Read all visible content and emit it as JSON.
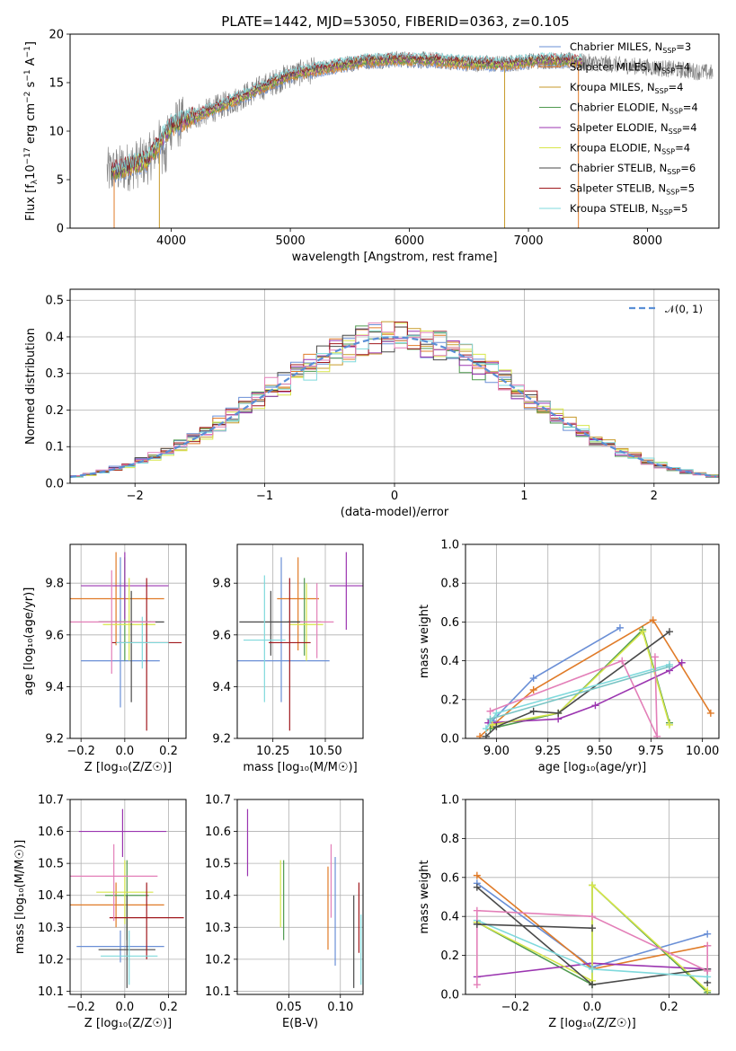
{
  "figure": {
    "title": "PLATE=1442, MJD=53050, FIBERID=0363, z=0.105"
  },
  "colors": {
    "Chabrier MILES": "#6a8fd6",
    "Salpeter MILES": "#e07b28",
    "Kroupa MILES": "#c79a2a",
    "Chabrier ELODIE": "#4f9a4f",
    "Salpeter ELODIE": "#9b35b0",
    "Kroupa ELODIE": "#d7e64a",
    "Chabrier STELIB": "#4a4a4a",
    "Salpeter STELIB": "#a0181d",
    "Kroupa STELIB": "#7fd9dc",
    "Pink": "#e37fb8",
    "Green": "#b8e05a",
    "Data": "#7f7f7f"
  },
  "chart_data": [
    {
      "id": "spectrum",
      "type": "line",
      "title": "PLATE=1442, MJD=53050, FIBERID=0363, z=0.105",
      "xlabel": "wavelength [Angstrom, rest frame]",
      "ylabel": "Flux [f",
      "ylabel_sub": "λ",
      "ylabel_mid": "10",
      "ylabel_sup": "−17",
      "ylabel_tail": " erg cm",
      "ylabel_sup2": "−2",
      "ylabel_tail2": " s",
      "ylabel_sup3": "−1",
      "ylabel_tail3": " A",
      "ylabel_sup4": "−1",
      "ylabel_end": "]",
      "xlim": [
        3150,
        8600
      ],
      "ylim": [
        0,
        20
      ],
      "xticks": [
        "4000",
        "5000",
        "6000",
        "7000",
        "8000"
      ],
      "yticks": [
        "0",
        "5",
        "10",
        "15",
        "20"
      ],
      "grid": false,
      "legend_position": "top-right",
      "legend": [
        {
          "label": "Chabrier MILES, N",
          "sub": "SSP",
          "tail": "=3",
          "color": "#6a8fd6"
        },
        {
          "label": "Salpeter MILES, N",
          "sub": "SSP",
          "tail": "=4",
          "color": "#e07b28"
        },
        {
          "label": "Kroupa MILES, N",
          "sub": "SSP",
          "tail": "=4",
          "color": "#c79a2a"
        },
        {
          "label": "Chabrier ELODIE, N",
          "sub": "SSP",
          "tail": "=4",
          "color": "#4f9a4f"
        },
        {
          "label": "Salpeter ELODIE, N",
          "sub": "SSP",
          "tail": "=4",
          "color": "#9b35b0"
        },
        {
          "label": "Kroupa ELODIE, N",
          "sub": "SSP",
          "tail": "=4",
          "color": "#d7e64a"
        },
        {
          "label": "Chabrier STELIB, N",
          "sub": "SSP",
          "tail": "=6",
          "color": "#4a4a4a"
        },
        {
          "label": "Salpeter STELIB, N",
          "sub": "SSP",
          "tail": "=5",
          "color": "#a0181d"
        },
        {
          "label": "Kroupa STELIB, N",
          "sub": "SSP",
          "tail": "=5",
          "color": "#7fd9dc"
        }
      ],
      "continuum": {
        "x": [
          3500,
          3800,
          4000,
          4200,
          4500,
          4800,
          5000,
          5300,
          5600,
          5900,
          6200,
          6500,
          6800,
          7000,
          7200,
          7400,
          7600,
          7800,
          8000,
          8200,
          8550
        ],
        "y": [
          5.8,
          7.0,
          10.5,
          11.5,
          13.0,
          14.7,
          15.8,
          16.5,
          17.2,
          17.4,
          17.3,
          17.0,
          16.9,
          17.2,
          17.3,
          17.2,
          17.0,
          16.8,
          16.6,
          16.4,
          16.0
        ]
      },
      "model_range": [
        3500,
        7450
      ],
      "drops": [
        {
          "x": 3520,
          "color": "#e07b28"
        },
        {
          "x": 3900,
          "color": "#c79a2a"
        },
        {
          "x": 6800,
          "color": "#c79a2a"
        },
        {
          "x": 7420,
          "color": "#e07b28"
        }
      ]
    },
    {
      "id": "residual-histogram",
      "type": "histogram",
      "xlabel": "(data-model)/error",
      "ylabel": "Normed distribution",
      "xlim": [
        -2.5,
        2.5
      ],
      "ylim": [
        0,
        0.53
      ],
      "xticks": [
        "−2",
        "−1",
        "0",
        "1",
        "2"
      ],
      "yticks": [
        "0.0",
        "0.1",
        "0.2",
        "0.3",
        "0.4",
        "0.5"
      ],
      "grid": true,
      "legend_position": "top-right",
      "legend": [
        {
          "label": "𝒩(0, 1)",
          "color": "#5a8fd6"
        }
      ],
      "bin_width": 0.1,
      "series_colors": [
        "#6a8fd6",
        "#e07b28",
        "#c79a2a",
        "#4f9a4f",
        "#9b35b0",
        "#d7e64a",
        "#4a4a4a",
        "#a0181d",
        "#7fd9dc",
        "#e37fb8"
      ]
    },
    {
      "id": "age-vs-Z",
      "type": "errorbar",
      "xlabel": "Z [log₁₀(Z/Z☉)]",
      "ylabel": "age  [log₁₀(age/yr)]",
      "xlim": [
        -0.25,
        0.28
      ],
      "ylim": [
        9.2,
        9.95
      ],
      "xticks": [
        "−0.2",
        "0.0",
        "0.2"
      ],
      "yticks": [
        "9.2",
        "9.4",
        "9.6",
        "9.8"
      ],
      "grid": true,
      "points": [
        {
          "x": -0.02,
          "y": 9.5,
          "xerr": 0.18,
          "yerr": [
            0.18,
            0.4
          ],
          "color": "#6a8fd6"
        },
        {
          "x": -0.04,
          "y": 9.74,
          "xerr": 0.22,
          "yerr": [
            0.18,
            0.18
          ],
          "color": "#e07b28"
        },
        {
          "x": 0.0,
          "y": 9.65,
          "xerr": 0.12,
          "yerr": [
            0.15,
            0.25
          ],
          "color": "#4f9a4f"
        },
        {
          "x": 0.0,
          "y": 9.79,
          "xerr": 0.2,
          "yerr": [
            0.13,
            0.13
          ],
          "color": "#9b35b0"
        },
        {
          "x": 0.02,
          "y": 9.64,
          "xerr": 0.12,
          "yerr": [
            0.14,
            0.18
          ],
          "color": "#d7e64a"
        },
        {
          "x": 0.03,
          "y": 9.65,
          "xerr": 0.15,
          "yerr": [
            0.31,
            0.12
          ],
          "color": "#4a4a4a"
        },
        {
          "x": 0.1,
          "y": 9.57,
          "xerr": 0.16,
          "yerr": [
            0.34,
            0.25
          ],
          "color": "#a0181d"
        },
        {
          "x": 0.08,
          "y": 9.57,
          "xerr": 0.12,
          "yerr": [
            0.1,
            0.1
          ],
          "color": "#7fd9dc"
        },
        {
          "x": -0.06,
          "y": 9.65,
          "xerr": 0.2,
          "yerr": [
            0.2,
            0.2
          ],
          "color": "#e37fb8"
        }
      ]
    },
    {
      "id": "age-vs-mass",
      "type": "errorbar",
      "xlabel": "mass [log₁₀(M/M☉)]",
      "ylabel": "",
      "xlim": [
        10.08,
        10.68
      ],
      "ylim": [
        9.2,
        9.95
      ],
      "xticks": [
        "10.25",
        "10.50"
      ],
      "yticks": [
        "9.2",
        "9.4",
        "9.6",
        "9.8"
      ],
      "grid": true,
      "points": [
        {
          "x": 10.29,
          "y": 9.5,
          "xerr": 0.23,
          "yerr": [
            0.16,
            0.4
          ],
          "color": "#6a8fd6"
        },
        {
          "x": 10.37,
          "y": 9.74,
          "xerr": 0.1,
          "yerr": [
            0.2,
            0.16
          ],
          "color": "#e07b28"
        },
        {
          "x": 10.4,
          "y": 9.65,
          "xerr": 0.08,
          "yerr": [
            0.13,
            0.17
          ],
          "color": "#4f9a4f"
        },
        {
          "x": 10.6,
          "y": 9.79,
          "xerr": 0.08,
          "yerr": [
            0.17,
            0.13
          ],
          "color": "#9b35b0"
        },
        {
          "x": 10.41,
          "y": 9.64,
          "xerr": 0.08,
          "yerr": [
            0.14,
            0.16
          ],
          "color": "#d7e64a"
        },
        {
          "x": 10.24,
          "y": 9.65,
          "xerr": 0.15,
          "yerr": [
            0.13,
            0.12
          ],
          "color": "#4a4a4a"
        },
        {
          "x": 10.33,
          "y": 9.57,
          "xerr": 0.1,
          "yerr": [
            0.34,
            0.25
          ],
          "color": "#a0181d"
        },
        {
          "x": 10.21,
          "y": 9.58,
          "xerr": 0.1,
          "yerr": [
            0.24,
            0.25
          ],
          "color": "#7fd9dc"
        },
        {
          "x": 10.46,
          "y": 9.65,
          "xerr": 0.08,
          "yerr": [
            0.14,
            0.15
          ],
          "color": "#e37fb8"
        }
      ]
    },
    {
      "id": "mass-weight-vs-age",
      "type": "line",
      "xlabel": "age  [log₁₀(age/yr)]",
      "ylabel": "mass weight",
      "xlim": [
        8.85,
        10.08
      ],
      "ylim": [
        0,
        1
      ],
      "xticks": [
        "9.00",
        "9.25",
        "9.50",
        "9.75",
        "10.00"
      ],
      "yticks": [
        "0.0",
        "0.2",
        "0.4",
        "0.6",
        "0.8",
        "1.0"
      ],
      "grid": true,
      "series": [
        {
          "x": [
            8.98,
            9.18,
            9.6
          ],
          "y": [
            0.09,
            0.31,
            0.57
          ],
          "color": "#6a8fd6"
        },
        {
          "x": [
            8.92,
            9.18,
            9.76,
            10.04
          ],
          "y": [
            0.01,
            0.25,
            0.61,
            0.13
          ],
          "color": "#e07b28"
        },
        {
          "x": [
            8.97,
            9.3,
            9.71,
            9.84
          ],
          "y": [
            0.05,
            0.13,
            0.56,
            0.08
          ],
          "color": "#4f9a4f"
        },
        {
          "x": [
            8.96,
            9.3,
            9.48,
            9.84,
            9.9
          ],
          "y": [
            0.08,
            0.1,
            0.17,
            0.35,
            0.39
          ],
          "color": "#9b35b0"
        },
        {
          "x": [
            8.98,
            9.3,
            9.71,
            9.84
          ],
          "y": [
            0.07,
            0.13,
            0.55,
            0.07
          ],
          "color": "#d7e64a"
        },
        {
          "x": [
            8.95,
            9.0,
            9.18,
            9.3,
            9.84
          ],
          "y": [
            0.01,
            0.06,
            0.14,
            0.13,
            0.55
          ],
          "color": "#4a4a4a"
        },
        {
          "x": [
            8.95,
            9.0,
            9.84
          ],
          "y": [
            0.05,
            0.13,
            0.38
          ],
          "color": "#7fd9dc"
        },
        {
          "x": [
            8.97,
            9.61,
            9.78,
            9.77
          ],
          "y": [
            0.14,
            0.4,
            0.01,
            0.42
          ],
          "color": "#e37fb8"
        },
        {
          "x": [
            8.97,
            9.84
          ],
          "y": [
            0.1,
            0.37
          ],
          "color": "#79c4c4"
        }
      ]
    },
    {
      "id": "mass-vs-Z",
      "type": "errorbar",
      "xlabel": "Z [log₁₀(Z/Z☉)]",
      "ylabel": "mass [log₁₀(M/M☉)]",
      "xlim": [
        -0.25,
        0.28
      ],
      "ylim": [
        10.09,
        10.7
      ],
      "xticks": [
        "−0.2",
        "0.0",
        "0.2"
      ],
      "yticks": [
        "10.1",
        "10.2",
        "10.3",
        "10.4",
        "10.5",
        "10.6",
        "10.7"
      ],
      "grid": true,
      "points": [
        {
          "x": -0.02,
          "y": 10.24,
          "xerr": 0.2,
          "yerr": [
            0.05,
            0.05
          ],
          "color": "#6a8fd6"
        },
        {
          "x": -0.04,
          "y": 10.37,
          "xerr": 0.22,
          "yerr": [
            0.07,
            0.07
          ],
          "color": "#e07b28"
        },
        {
          "x": 0.01,
          "y": 10.4,
          "xerr": 0.1,
          "yerr": [
            0.14,
            0.11
          ],
          "color": "#4f9a4f"
        },
        {
          "x": -0.01,
          "y": 10.6,
          "xerr": 0.2,
          "yerr": [
            0.08,
            0.07
          ],
          "color": "#9b35b0"
        },
        {
          "x": 0.0,
          "y": 10.41,
          "xerr": 0.13,
          "yerr": [
            0.1,
            0.1
          ],
          "color": "#d7e64a"
        },
        {
          "x": 0.01,
          "y": 10.23,
          "xerr": 0.13,
          "yerr": [
            0.12,
            0.17
          ],
          "color": "#4a4a4a"
        },
        {
          "x": 0.1,
          "y": 10.33,
          "xerr": 0.17,
          "yerr": [
            0.13,
            0.11
          ],
          "color": "#a0181d"
        },
        {
          "x": 0.02,
          "y": 10.21,
          "xerr": 0.13,
          "yerr": [
            0.09,
            0.08
          ],
          "color": "#7fd9dc"
        },
        {
          "x": -0.05,
          "y": 10.46,
          "xerr": 0.2,
          "yerr": [
            0.14,
            0.1
          ],
          "color": "#e37fb8"
        }
      ]
    },
    {
      "id": "mass-vs-EBV",
      "type": "errorbar",
      "xlabel": "E(B-V)",
      "ylabel": "",
      "xlim": [
        0.0,
        0.122
      ],
      "ylim": [
        10.09,
        10.7
      ],
      "xticks": [
        "0.05",
        "0.10"
      ],
      "yticks": [
        "10.1",
        "10.2",
        "10.3",
        "10.4",
        "10.5",
        "10.6",
        "10.7"
      ],
      "grid": true,
      "points": [
        {
          "x": 0.095,
          "y": 10.35,
          "xerr": 0,
          "yerr": [
            0.17,
            0.17
          ],
          "color": "#6a8fd6"
        },
        {
          "x": 0.088,
          "y": 10.37,
          "xerr": 0,
          "yerr": [
            0.14,
            0.12
          ],
          "color": "#e07b28"
        },
        {
          "x": 0.045,
          "y": 10.39,
          "xerr": 0,
          "yerr": [
            0.13,
            0.12
          ],
          "color": "#4f9a4f"
        },
        {
          "x": 0.01,
          "y": 10.57,
          "xerr": 0,
          "yerr": [
            0.11,
            0.1
          ],
          "color": "#9b35b0"
        },
        {
          "x": 0.042,
          "y": 10.4,
          "xerr": 0,
          "yerr": [
            0.1,
            0.11
          ],
          "color": "#d7e64a"
        },
        {
          "x": 0.113,
          "y": 10.27,
          "xerr": 0,
          "yerr": [
            0.16,
            0.13
          ],
          "color": "#4a4a4a"
        },
        {
          "x": 0.118,
          "y": 10.33,
          "xerr": 0,
          "yerr": [
            0.11,
            0.11
          ],
          "color": "#a0181d"
        },
        {
          "x": 0.12,
          "y": 10.22,
          "xerr": 0,
          "yerr": [
            0.1,
            0.12
          ],
          "color": "#7fd9dc"
        },
        {
          "x": 0.091,
          "y": 10.46,
          "xerr": 0,
          "yerr": [
            0.13,
            0.1
          ],
          "color": "#e37fb8"
        }
      ]
    },
    {
      "id": "mass-weight-vs-Z",
      "type": "line",
      "xlabel": "Z [log₁₀(Z/Z☉)]",
      "ylabel": "mass weight",
      "xlim": [
        -0.33,
        0.33
      ],
      "ylim": [
        0,
        1
      ],
      "xticks": [
        "−0.2",
        "0.0",
        "0.2"
      ],
      "yticks": [
        "0.0",
        "0.2",
        "0.4",
        "0.6",
        "0.8",
        "1.0"
      ],
      "grid": true,
      "series": [
        {
          "x": [
            -0.3,
            0.0,
            0.3
          ],
          "y": [
            0.57,
            0.14,
            0.31
          ],
          "color": "#6a8fd6"
        },
        {
          "x": [
            -0.3,
            0.0,
            0.3
          ],
          "y": [
            0.61,
            0.13,
            0.25
          ],
          "color": "#e07b28"
        },
        {
          "x": [
            -0.3,
            0.0,
            0.0,
            0.3
          ],
          "y": [
            0.37,
            0.05,
            0.56,
            0.01
          ],
          "color": "#4f9a4f"
        },
        {
          "x": [
            -0.3,
            0.0,
            0.3
          ],
          "y": [
            0.09,
            0.16,
            0.13
          ],
          "color": "#9b35b0"
        },
        {
          "x": [
            -0.3,
            0.0,
            0.0,
            0.3
          ],
          "y": [
            0.37,
            0.07,
            0.56,
            0.02
          ],
          "color": "#d7e64a"
        },
        {
          "x": [
            -0.3,
            0.0,
            0.3,
            0.3
          ],
          "y": [
            0.55,
            0.05,
            0.13,
            0.06
          ],
          "color": "#4a4a4a"
        },
        {
          "x": [
            -0.3,
            0.0,
            0.3
          ],
          "y": [
            0.38,
            0.13,
            0.09
          ],
          "color": "#7fd9dc"
        },
        {
          "x": [
            -0.3,
            -0.3,
            0.0,
            0.3,
            0.3
          ],
          "y": [
            0.05,
            0.43,
            0.4,
            0.12,
            0.25
          ],
          "color": "#e37fb8"
        },
        {
          "x": [
            -0.3,
            0.0
          ],
          "y": [
            0.36,
            0.34
          ],
          "color": "#4a4a4a"
        }
      ]
    }
  ]
}
